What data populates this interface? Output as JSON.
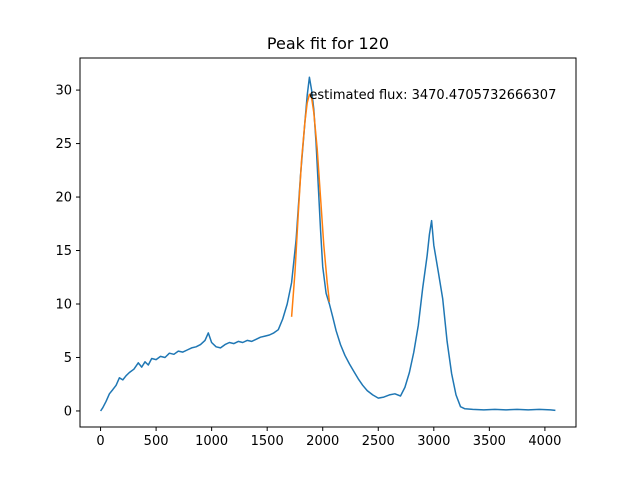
{
  "chart_data": {
    "type": "line",
    "title": "Peak fit for 120",
    "xlabel": "",
    "ylabel": "",
    "xlim": [
      -185,
      4280
    ],
    "ylim": [
      -1.5,
      33.0
    ],
    "x_ticks": [
      0,
      500,
      1000,
      1500,
      2000,
      2500,
      3000,
      3500,
      4000
    ],
    "y_ticks": [
      0,
      5,
      10,
      15,
      20,
      25,
      30
    ],
    "grid": false,
    "legend": "none",
    "annotation": {
      "text": "estimated flux: 3470.4705732666307",
      "x": 1880,
      "y": 29.6
    },
    "series": [
      {
        "color": "#1f77b4",
        "points": [
          [
            0,
            0.0
          ],
          [
            20,
            0.3
          ],
          [
            50,
            0.9
          ],
          [
            80,
            1.6
          ],
          [
            110,
            2.0
          ],
          [
            140,
            2.4
          ],
          [
            170,
            3.1
          ],
          [
            200,
            2.9
          ],
          [
            230,
            3.3
          ],
          [
            260,
            3.6
          ],
          [
            300,
            3.9
          ],
          [
            340,
            4.5
          ],
          [
            370,
            4.1
          ],
          [
            400,
            4.6
          ],
          [
            430,
            4.3
          ],
          [
            460,
            4.9
          ],
          [
            500,
            4.8
          ],
          [
            540,
            5.1
          ],
          [
            580,
            5.0
          ],
          [
            620,
            5.4
          ],
          [
            660,
            5.3
          ],
          [
            700,
            5.6
          ],
          [
            740,
            5.5
          ],
          [
            780,
            5.7
          ],
          [
            820,
            5.9
          ],
          [
            860,
            6.0
          ],
          [
            900,
            6.2
          ],
          [
            940,
            6.6
          ],
          [
            970,
            7.3
          ],
          [
            1000,
            6.4
          ],
          [
            1040,
            6.0
          ],
          [
            1080,
            5.9
          ],
          [
            1120,
            6.2
          ],
          [
            1160,
            6.4
          ],
          [
            1200,
            6.3
          ],
          [
            1240,
            6.5
          ],
          [
            1280,
            6.4
          ],
          [
            1320,
            6.6
          ],
          [
            1360,
            6.5
          ],
          [
            1400,
            6.7
          ],
          [
            1440,
            6.9
          ],
          [
            1480,
            7.0
          ],
          [
            1520,
            7.1
          ],
          [
            1560,
            7.3
          ],
          [
            1600,
            7.6
          ],
          [
            1640,
            8.6
          ],
          [
            1680,
            10.0
          ],
          [
            1720,
            12.0
          ],
          [
            1760,
            16.0
          ],
          [
            1800,
            22.0
          ],
          [
            1840,
            27.0
          ],
          [
            1860,
            29.5
          ],
          [
            1880,
            31.2
          ],
          [
            1900,
            30.0
          ],
          [
            1920,
            28.2
          ],
          [
            1940,
            25.0
          ],
          [
            1960,
            21.0
          ],
          [
            1980,
            17.0
          ],
          [
            2000,
            13.5
          ],
          [
            2030,
            11.0
          ],
          [
            2060,
            10.0
          ],
          [
            2090,
            8.8
          ],
          [
            2120,
            7.5
          ],
          [
            2160,
            6.2
          ],
          [
            2200,
            5.2
          ],
          [
            2240,
            4.4
          ],
          [
            2280,
            3.7
          ],
          [
            2320,
            3.0
          ],
          [
            2360,
            2.4
          ],
          [
            2400,
            1.9
          ],
          [
            2450,
            1.5
          ],
          [
            2500,
            1.2
          ],
          [
            2550,
            1.3
          ],
          [
            2600,
            1.5
          ],
          [
            2650,
            1.6
          ],
          [
            2700,
            1.4
          ],
          [
            2740,
            2.2
          ],
          [
            2780,
            3.6
          ],
          [
            2820,
            5.5
          ],
          [
            2860,
            8.0
          ],
          [
            2900,
            11.5
          ],
          [
            2940,
            14.5
          ],
          [
            2960,
            16.5
          ],
          [
            2980,
            17.8
          ],
          [
            3000,
            15.5
          ],
          [
            3040,
            13.0
          ],
          [
            3080,
            10.5
          ],
          [
            3120,
            6.5
          ],
          [
            3160,
            3.5
          ],
          [
            3200,
            1.5
          ],
          [
            3240,
            0.4
          ],
          [
            3280,
            0.2
          ],
          [
            3350,
            0.15
          ],
          [
            3450,
            0.1
          ],
          [
            3550,
            0.15
          ],
          [
            3650,
            0.1
          ],
          [
            3750,
            0.15
          ],
          [
            3850,
            0.1
          ],
          [
            3950,
            0.15
          ],
          [
            4050,
            0.1
          ],
          [
            4095,
            0.05
          ]
        ]
      },
      {
        "color": "#ff7f0e",
        "points": [
          [
            1720,
            8.8
          ],
          [
            1750,
            13.0
          ],
          [
            1780,
            18.5
          ],
          [
            1810,
            23.5
          ],
          [
            1840,
            27.0
          ],
          [
            1860,
            28.8
          ],
          [
            1880,
            29.6
          ],
          [
            1900,
            29.3
          ],
          [
            1920,
            27.9
          ],
          [
            1950,
            24.5
          ],
          [
            1980,
            20.0
          ],
          [
            2010,
            15.5
          ],
          [
            2040,
            12.0
          ],
          [
            2060,
            10.2
          ]
        ]
      }
    ]
  }
}
